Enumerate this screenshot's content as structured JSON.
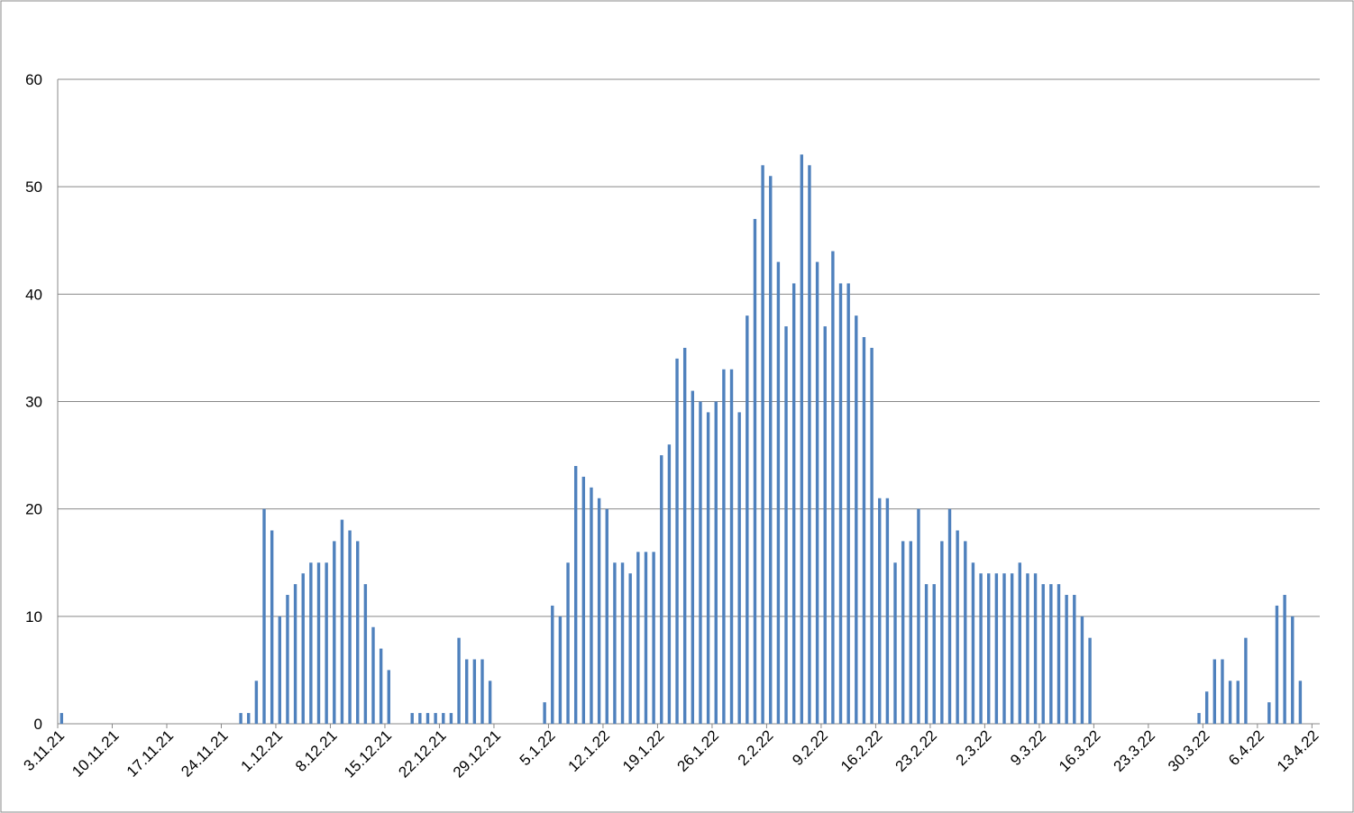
{
  "chart_data": {
    "type": "bar",
    "color": "#4f81bd",
    "grid": true,
    "ylim": [
      0,
      60
    ],
    "yticks": [
      0,
      10,
      20,
      30,
      40,
      50,
      60
    ],
    "categories": [
      "3.11.21",
      null,
      null,
      null,
      null,
      null,
      null,
      "10.11.21",
      null,
      null,
      null,
      null,
      null,
      null,
      "17.11.21",
      null,
      null,
      null,
      null,
      null,
      null,
      "24.11.21",
      null,
      null,
      null,
      null,
      null,
      null,
      "1.12.21",
      null,
      null,
      null,
      null,
      null,
      null,
      "8.12.21",
      null,
      null,
      null,
      null,
      null,
      null,
      "15.12.21",
      null,
      null,
      null,
      null,
      null,
      null,
      "22.12.21",
      null,
      null,
      null,
      null,
      null,
      null,
      "29.12.21",
      null,
      null,
      null,
      null,
      null,
      null,
      "5.1.22",
      null,
      null,
      null,
      null,
      null,
      null,
      "12.1.22",
      null,
      null,
      null,
      null,
      null,
      null,
      "19.1.22",
      null,
      null,
      null,
      null,
      null,
      null,
      "26.1.22",
      null,
      null,
      null,
      null,
      null,
      null,
      "2.2.22",
      null,
      null,
      null,
      null,
      null,
      null,
      "9.2.22",
      null,
      null,
      null,
      null,
      null,
      null,
      "16.2.22",
      null,
      null,
      null,
      null,
      null,
      null,
      "23.2.22",
      null,
      null,
      null,
      null,
      null,
      null,
      "2.3.22",
      null,
      null,
      null,
      null,
      null,
      null,
      "9.3.22",
      null,
      null,
      null,
      null,
      null,
      null,
      "16.3.22",
      null,
      null,
      null,
      null,
      null,
      null,
      "23.3.22",
      null,
      null,
      null,
      null,
      null,
      null,
      "30.3.22",
      null,
      null,
      null,
      null,
      null,
      null,
      "6.4.22",
      null,
      null,
      null,
      null,
      null,
      null,
      "13.4.22"
    ],
    "values": [
      1,
      0,
      0,
      0,
      0,
      0,
      0,
      0,
      0,
      0,
      0,
      0,
      0,
      0,
      0,
      0,
      0,
      0,
      0,
      0,
      0,
      0,
      0,
      1,
      1,
      4,
      20,
      18,
      10,
      12,
      13,
      14,
      15,
      15,
      15,
      17,
      19,
      18,
      17,
      13,
      9,
      7,
      5,
      0,
      0,
      1,
      1,
      1,
      1,
      1,
      1,
      8,
      6,
      6,
      6,
      4,
      0,
      0,
      0,
      0,
      0,
      0,
      2,
      11,
      10,
      15,
      24,
      23,
      22,
      21,
      20,
      15,
      15,
      14,
      16,
      16,
      16,
      25,
      26,
      34,
      35,
      31,
      30,
      29,
      30,
      33,
      33,
      29,
      38,
      47,
      52,
      51,
      43,
      37,
      41,
      53,
      52,
      43,
      37,
      44,
      41,
      41,
      38,
      36,
      35,
      21,
      21,
      15,
      17,
      17,
      20,
      13,
      13,
      17,
      20,
      18,
      17,
      15,
      14,
      14,
      14,
      14,
      14,
      15,
      14,
      14,
      13,
      13,
      13,
      12,
      12,
      10,
      8,
      0,
      0,
      0,
      0,
      0,
      0,
      0,
      0,
      0,
      0,
      0,
      0,
      0,
      1,
      3,
      6,
      6,
      4,
      4,
      8,
      0,
      0,
      2,
      11,
      12,
      10,
      4,
      0,
      0
    ]
  }
}
